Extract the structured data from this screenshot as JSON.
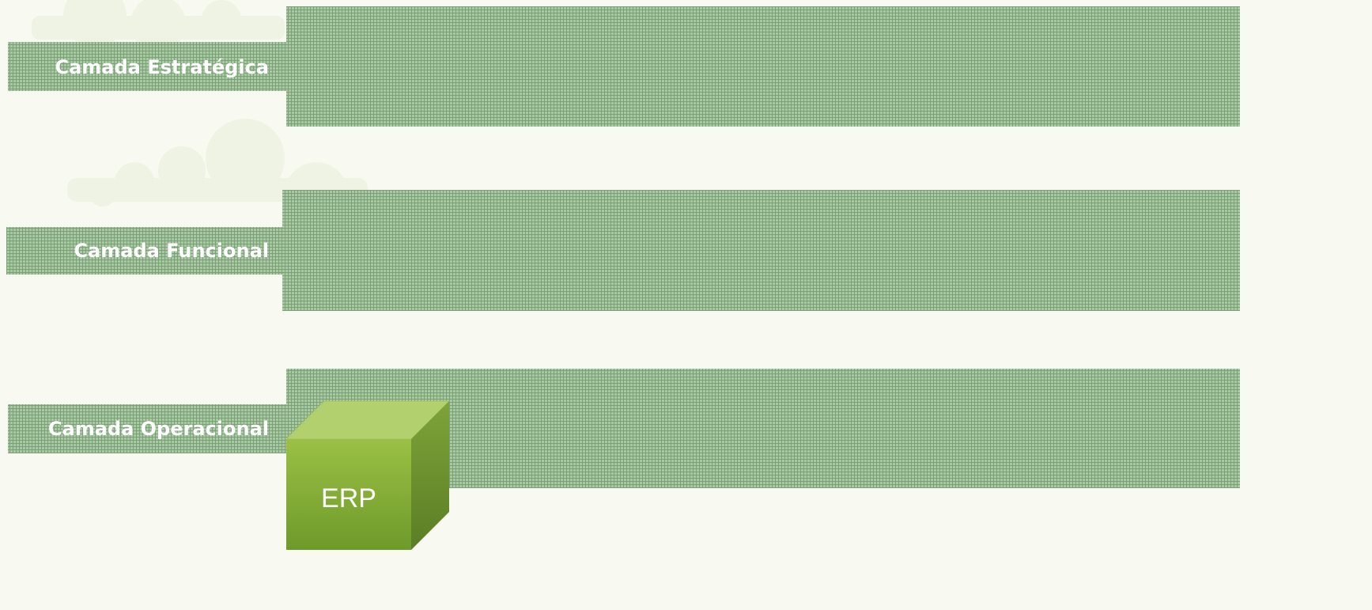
{
  "layers": [
    {
      "label": "Camada Estratégica"
    },
    {
      "label": "Camada Funcional"
    },
    {
      "label": "Camada Operacional"
    }
  ],
  "cube": {
    "label": "ERP"
  }
}
